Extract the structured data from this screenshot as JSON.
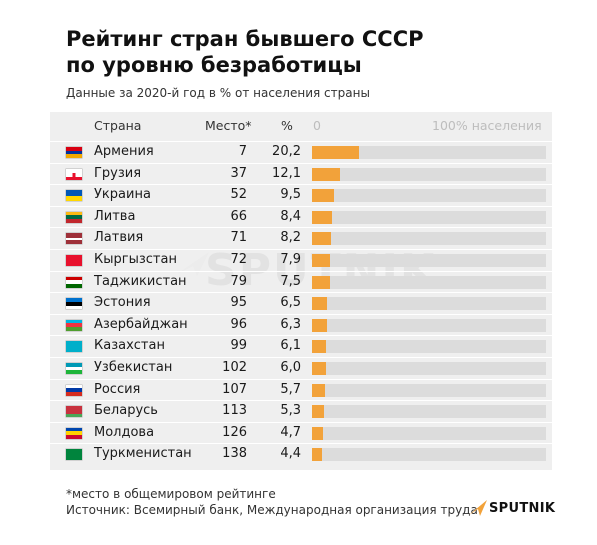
{
  "title_line1": "Рейтинг стран бывшего СССР",
  "title_line2": "по уровню безработицы",
  "subtitle": "Данные за 2020-й год в % от населения страны",
  "headers": {
    "country": "Страна",
    "place": "Место*",
    "pct": "%",
    "axis_zero": "0",
    "axis_max": "100% населения"
  },
  "watermark": "SPUTNIK",
  "footnote": "*место в общемировом рейтинге",
  "source": "Источник: Всемирный банк, Международная организация труда",
  "logo_text": "SPUTNIK",
  "colors": {
    "bar": "#f2a23a",
    "track": "#dcdcdc",
    "panel": "#efefef"
  },
  "chart_data": {
    "type": "bar",
    "orientation": "horizontal",
    "title": "Рейтинг стран бывшего СССР по уровню безработицы",
    "subtitle": "Данные за 2020-й год в % от населения страны",
    "xlim": [
      0,
      100
    ],
    "columns": [
      "Страна",
      "Место*",
      "%"
    ],
    "rows": [
      {
        "country": "Армения",
        "place": "7",
        "pct": "20,2",
        "value": 20.2,
        "flag": [
          "#d90012",
          "#0033a0",
          "#f2a800"
        ],
        "flag_name": "flag-armenia-icon"
      },
      {
        "country": "Грузия",
        "place": "37",
        "pct": "12,1",
        "value": 12.1,
        "flag": [
          "#ffffff"
        ],
        "flag_name": "flag-georgia-icon"
      },
      {
        "country": "Украина",
        "place": "52",
        "pct": "9,5",
        "value": 9.5,
        "flag": [
          "#0057b7",
          "#ffd700"
        ],
        "flag_name": "flag-ukraine-icon"
      },
      {
        "country": "Литва",
        "place": "66",
        "pct": "8,4",
        "value": 8.4,
        "flag": [
          "#fdb913",
          "#006a44",
          "#c1272d"
        ],
        "flag_name": "flag-lithuania-icon"
      },
      {
        "country": "Латвия",
        "place": "71",
        "pct": "8,2",
        "value": 8.2,
        "flag": [
          "#9e3039",
          "#9e3039",
          "#ffffff",
          "#9e3039",
          "#9e3039"
        ],
        "flag_name": "flag-latvia-icon"
      },
      {
        "country": "Кыргызстан",
        "place": "72",
        "pct": "7,9",
        "value": 7.9,
        "flag": [
          "#e8112d"
        ],
        "flag_name": "flag-kyrgyzstan-icon"
      },
      {
        "country": "Таджикистан",
        "place": "79",
        "pct": "7,5",
        "value": 7.5,
        "flag": [
          "#cc0000",
          "#ffffff",
          "#006600"
        ],
        "flag_name": "flag-tajikistan-icon"
      },
      {
        "country": "Эстония",
        "place": "95",
        "pct": "6,5",
        "value": 6.5,
        "flag": [
          "#0072ce",
          "#000000",
          "#ffffff"
        ],
        "flag_name": "flag-estonia-icon"
      },
      {
        "country": "Азербайджан",
        "place": "96",
        "pct": "6,3",
        "value": 6.3,
        "flag": [
          "#00b5e2",
          "#ef3340",
          "#509e2f"
        ],
        "flag_name": "flag-azerbaijan-icon"
      },
      {
        "country": "Казахстан",
        "place": "99",
        "pct": "6,1",
        "value": 6.1,
        "flag": [
          "#00afca"
        ],
        "flag_name": "flag-kazakhstan-icon"
      },
      {
        "country": "Узбекистан",
        "place": "102",
        "pct": "6,0",
        "value": 6.0,
        "flag": [
          "#0099b5",
          "#ffffff",
          "#1eb53a"
        ],
        "flag_name": "flag-uzbekistan-icon"
      },
      {
        "country": "Россия",
        "place": "107",
        "pct": "5,7",
        "value": 5.7,
        "flag": [
          "#ffffff",
          "#0039a6",
          "#d52b1e"
        ],
        "flag_name": "flag-russia-icon"
      },
      {
        "country": "Беларусь",
        "place": "113",
        "pct": "5,3",
        "value": 5.3,
        "flag": [
          "#c8313e",
          "#c8313e",
          "#4aa657"
        ],
        "flag_name": "flag-belarus-icon"
      },
      {
        "country": "Молдова",
        "place": "126",
        "pct": "4,7",
        "value": 4.7,
        "flag": [
          "#0046ae",
          "#ffd200",
          "#cc092f"
        ],
        "flag_name": "flag-moldova-icon"
      },
      {
        "country": "Туркменистан",
        "place": "138",
        "pct": "4,4",
        "value": 4.4,
        "flag": [
          "#00843d"
        ],
        "flag_name": "flag-turkmenistan-icon"
      }
    ]
  }
}
